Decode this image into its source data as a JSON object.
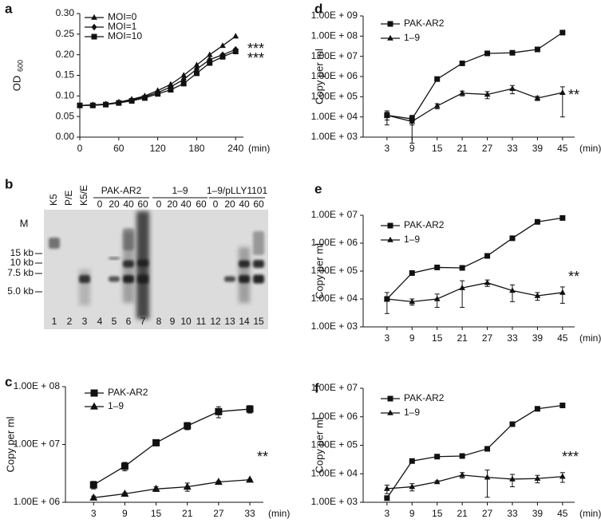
{
  "chart_data": [
    {
      "type": "line",
      "panel": "a",
      "ylabel": "OD",
      "ylabel_sub": "600",
      "xlabel": "(min)",
      "x": [
        0,
        20,
        40,
        60,
        80,
        100,
        120,
        140,
        160,
        180,
        200,
        220,
        240
      ],
      "xlim": [
        0,
        252
      ],
      "xticks": [
        0,
        60,
        120,
        180,
        240
      ],
      "ylim": [
        0,
        0.3
      ],
      "yticks": [
        {
          "value": 0,
          "label": "0.00"
        },
        0.05,
        {
          "value": 0.1,
          "label": "0.10"
        },
        0.15,
        {
          "value": 0.2,
          "label": "0.20"
        },
        0.25,
        {
          "value": 0.3,
          "label": "0.30"
        }
      ],
      "series": [
        {
          "name": "MOI=0",
          "color": "#111111",
          "marker": "triangle",
          "values": [
            0.077,
            0.078,
            0.08,
            0.085,
            0.092,
            0.1,
            0.113,
            0.128,
            0.15,
            0.175,
            0.2,
            0.222,
            0.245
          ]
        },
        {
          "name": "MOI=1",
          "color": "#111111",
          "marker": "diamond",
          "values": [
            0.077,
            0.078,
            0.08,
            0.084,
            0.09,
            0.098,
            0.108,
            0.122,
            0.14,
            0.165,
            0.188,
            0.2,
            0.213
          ]
        },
        {
          "name": "MOI=10",
          "color": "#111111",
          "marker": "square",
          "values": [
            0.077,
            0.077,
            0.079,
            0.083,
            0.088,
            0.095,
            0.105,
            0.115,
            0.13,
            0.155,
            0.18,
            0.195,
            0.208
          ]
        }
      ],
      "annotations": [
        "***",
        "***"
      ]
    },
    {
      "type": "line",
      "panel": "c",
      "ylabel": "Copy per ml",
      "xlabel": "(min)",
      "log_y": true,
      "x": [
        3,
        9,
        15,
        21,
        27,
        33
      ],
      "xlim": [
        -2.4,
        35.6
      ],
      "xticks": [
        3,
        9,
        15,
        21,
        27,
        33
      ],
      "ylim": [
        1000000,
        100000000
      ],
      "yticks": [
        {
          "value": 1000000,
          "label": "1.00E + 06"
        },
        {
          "value": 10000000,
          "label": "1.00E + 07"
        },
        {
          "value": 100000000,
          "label": "1.00E + 08"
        }
      ],
      "series": [
        {
          "name": "PAK-AR2",
          "color": "#111111",
          "marker": "square",
          "values": [
            2000000,
            4200000,
            10700000,
            21000000,
            37000000,
            41000000
          ],
          "errors": [
            300000,
            700000,
            1000000,
            3000000,
            8000000,
            6000000
          ]
        },
        {
          "name": "1–9",
          "color": "#111111",
          "marker": "triangle",
          "values": [
            1200000,
            1400000,
            1700000,
            1850000,
            2250000,
            2450000
          ],
          "errors": [
            80000,
            60000,
            150000,
            300000,
            80000,
            50000
          ]
        }
      ],
      "annotations": [
        "**"
      ]
    },
    {
      "type": "line",
      "panel": "d",
      "ylabel": "Copy per ml",
      "xlabel": "(min)",
      "log_y": true,
      "x": [
        3,
        9,
        15,
        21,
        27,
        33,
        39,
        45
      ],
      "xlim": [
        -2.7,
        47.9
      ],
      "xticks": [
        3,
        9,
        15,
        21,
        27,
        33,
        39,
        45
      ],
      "ylim": [
        1000,
        1000000000
      ],
      "yticks": [
        {
          "value": 1000,
          "label": "1.00E + 03"
        },
        {
          "value": 10000,
          "label": "1.00E + 04"
        },
        {
          "value": 100000,
          "label": "1.00E + 05"
        },
        {
          "value": 1000000,
          "label": "1.00E + 06"
        },
        {
          "value": 10000000,
          "label": "1.00E + 07"
        },
        {
          "value": 100000000,
          "label": "1.00E + 08"
        },
        {
          "value": 1000000000,
          "label": "1.00E + 09"
        }
      ],
      "series": [
        {
          "name": "PAK-AR2",
          "color": "#111111",
          "marker": "square",
          "values": [
            12000,
            8000,
            750000,
            4500000,
            14000000,
            15000000,
            22000000,
            150000000
          ],
          "errors": [
            8000,
            4000,
            100000,
            500000,
            2000000,
            1000000,
            3000000,
            20000000
          ]
        },
        {
          "name": "1–9",
          "color": "#111111",
          "marker": "triangle",
          "values": [
            12000,
            6000,
            35000,
            150000,
            130000,
            250000,
            85000,
            160000
          ],
          "errors": [
            5000,
            5500,
            10000,
            40000,
            50000,
            110000,
            20000,
            150000
          ]
        }
      ],
      "annotations": [
        "**"
      ]
    },
    {
      "type": "line",
      "panel": "e",
      "ylabel": "Copy per ml",
      "xlabel": "(min)",
      "log_y": true,
      "x": [
        3,
        9,
        15,
        21,
        27,
        33,
        39,
        45
      ],
      "xlim": [
        -2.7,
        47.9
      ],
      "xticks": [
        3,
        9,
        15,
        21,
        27,
        33,
        39,
        45
      ],
      "ylim": [
        1000,
        10000000
      ],
      "yticks": [
        {
          "value": 1000,
          "label": "1.00E + 03"
        },
        {
          "value": 10000,
          "label": "1.00E + 04"
        },
        {
          "value": 100000,
          "label": "1.00E + 05"
        },
        {
          "value": 1000000,
          "label": "1.00E + 06"
        },
        {
          "value": 10000000,
          "label": "1.00E + 07"
        }
      ],
      "series": [
        {
          "name": "PAK-AR2",
          "color": "#111111",
          "marker": "square",
          "values": [
            10000,
            85000,
            135000,
            130000,
            350000,
            1500000,
            5800000,
            8000000
          ],
          "errors": [
            1000,
            15000,
            15000,
            15000,
            50000,
            150000,
            500000,
            800000
          ]
        },
        {
          "name": "1–9",
          "color": "#111111",
          "marker": "triangle",
          "values": [
            10000,
            8000,
            10000,
            25000,
            38000,
            20000,
            13000,
            17000
          ],
          "errors": [
            7000,
            2000,
            5000,
            20000,
            10000,
            12000,
            4000,
            10000
          ]
        }
      ],
      "annotations": [
        "**"
      ]
    },
    {
      "type": "line",
      "panel": "f",
      "ylabel": "Copy per ml",
      "xlabel": "(min)",
      "log_y": true,
      "x": [
        3,
        9,
        15,
        21,
        27,
        33,
        39,
        45
      ],
      "xlim": [
        -2.7,
        47.9
      ],
      "xticks": [
        3,
        9,
        15,
        21,
        27,
        33,
        39,
        45
      ],
      "ylim": [
        1000,
        10000000
      ],
      "yticks": [
        {
          "value": 1000,
          "label": "1.00E + 03"
        },
        {
          "value": 10000,
          "label": "1.00E + 04"
        },
        {
          "value": 100000,
          "label": "1.00E + 05"
        },
        {
          "value": 1000000,
          "label": "1.00E + 06"
        },
        {
          "value": 10000000,
          "label": "1.00E + 07"
        }
      ],
      "series": [
        {
          "name": "PAK-AR2",
          "color": "#111111",
          "marker": "square",
          "values": [
            1400,
            28000,
            40000,
            42000,
            75000,
            550000,
            1900000,
            2500000
          ],
          "errors": [
            200,
            3000,
            4000,
            4000,
            6000,
            50000,
            200000,
            200000
          ]
        },
        {
          "name": "1–9",
          "color": "#111111",
          "marker": "triangle",
          "values": [
            3000,
            3500,
            5200,
            9000,
            7500,
            6500,
            6800,
            8000
          ],
          "errors": [
            1000,
            1000,
            500,
            2000,
            6000,
            3000,
            2000,
            3000
          ]
        }
      ],
      "annotations": [
        "***"
      ]
    }
  ],
  "gel": {
    "panel": "b",
    "marker_label": "M",
    "top_labels": [
      "K5",
      "P/E",
      "K5/E"
    ],
    "groups": [
      {
        "name": "PAK-AR2",
        "times": [
          0,
          20,
          40,
          60
        ]
      },
      {
        "name": "1–9",
        "times": [
          0,
          20,
          40,
          60
        ]
      },
      {
        "name": "1–9/pLLY1101",
        "times": [
          0,
          20,
          40,
          60
        ]
      }
    ],
    "sizes": [
      "15 kb",
      "10 kb",
      "7.5 kb",
      "5.0 kb"
    ],
    "lane_numbers": [
      1,
      2,
      3,
      4,
      5,
      6,
      7,
      8,
      9,
      10,
      11,
      12,
      13,
      14,
      15
    ]
  }
}
